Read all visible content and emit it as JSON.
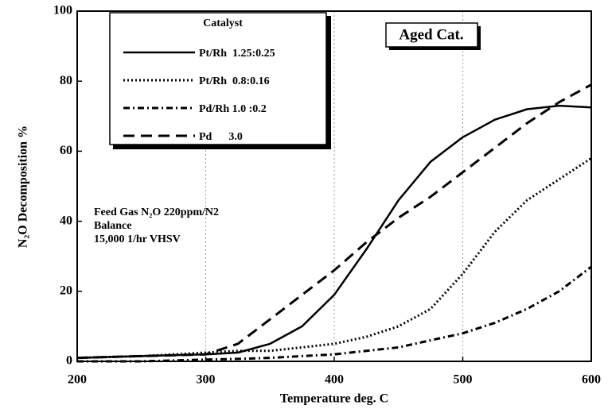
{
  "chart_data": {
    "type": "line",
    "xlabel": "Temperature deg. C",
    "ylabel": "N₂O Decomposition %",
    "legend_title": "Catalyst",
    "annotations": [
      "Aged Cat.",
      "Feed Gas N₂O 220ppm/N2",
      "Balance",
      "15,000 1/hr VHSV"
    ],
    "x": [
      200,
      250,
      300,
      325,
      350,
      375,
      400,
      425,
      450,
      475,
      500,
      525,
      550,
      575,
      600
    ],
    "series": [
      {
        "name": "Pt/Rh  1.25:0.25",
        "color": "#000000",
        "dash": "solid",
        "values": [
          1,
          1.5,
          2,
          2.5,
          5,
          10,
          19,
          32,
          46,
          57,
          64,
          69,
          72,
          73,
          72.5
        ]
      },
      {
        "name": "Pt/Rh  0.8:0.16",
        "color": "#000000",
        "dash": "dotted",
        "values": [
          1,
          1.5,
          2.5,
          3,
          3,
          4,
          5,
          7,
          10,
          15,
          25,
          37,
          46,
          52,
          58
        ]
      },
      {
        "name": "Pd/Rh 1.0 :0.2",
        "color": "#000000",
        "dash": "dashdot",
        "values": [
          0,
          0,
          0.5,
          0.7,
          1,
          1.5,
          2,
          3,
          4,
          6,
          8,
          11,
          15,
          20,
          27
        ]
      },
      {
        "name": "Pd      3.0",
        "color": "#000000",
        "dash": "dashed",
        "values": [
          1,
          1.5,
          2,
          5,
          12,
          19,
          26,
          34,
          41,
          47,
          54,
          61,
          68,
          74,
          79
        ]
      }
    ],
    "xlim": [
      200,
      600
    ],
    "xticks": [
      200,
      300,
      400,
      500,
      600
    ],
    "ylim": [
      0,
      100
    ],
    "yticks": [
      0,
      20,
      40,
      60,
      80,
      100
    ],
    "grid": true
  }
}
